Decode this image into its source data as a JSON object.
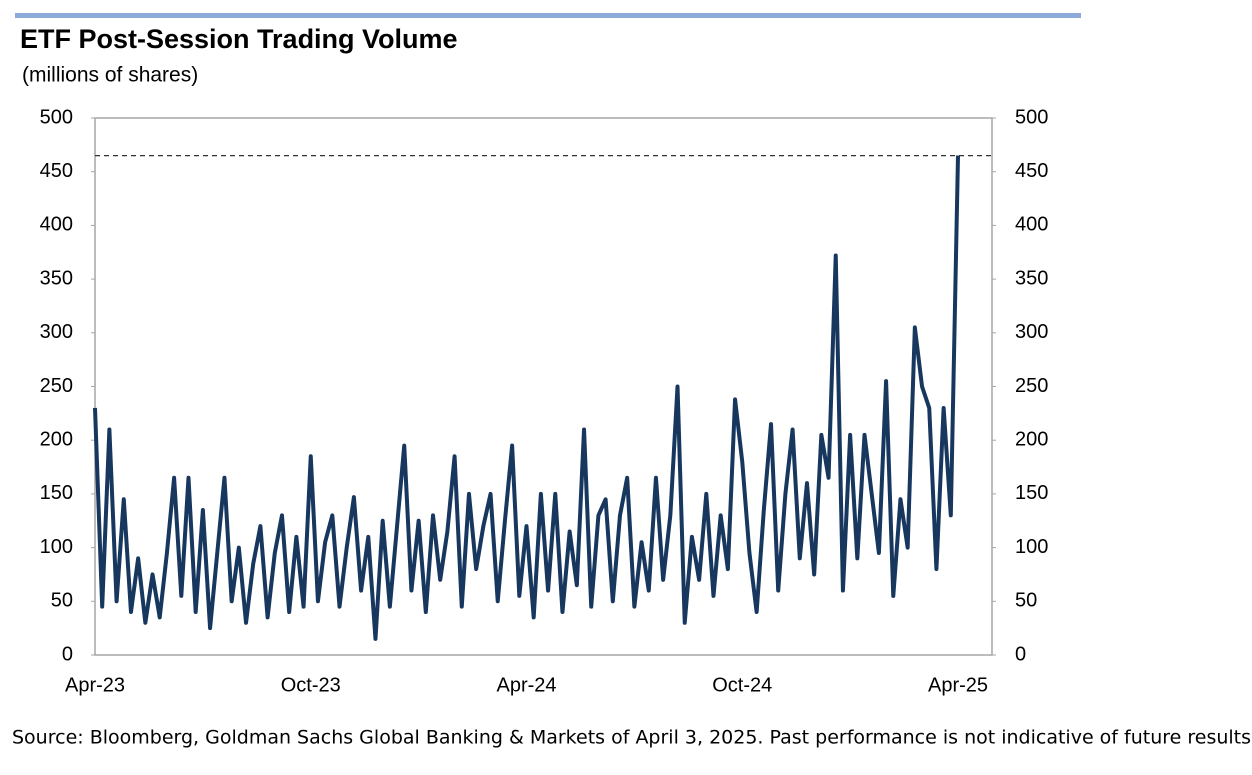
{
  "chart_data": {
    "type": "line",
    "title": "ETF Post-Session Trading Volume",
    "subtitle": "(millions of shares)",
    "source": "Source: Bloomberg, Goldman Sachs Global Banking & Markets of April 3, 2025. Past performance is not indicative of future results.",
    "categories": [
      "Apr-23",
      null,
      null,
      null,
      null,
      null,
      null,
      null,
      null,
      null,
      null,
      null,
      null,
      null,
      null,
      null,
      null,
      null,
      null,
      null,
      null,
      null,
      null,
      null,
      null,
      null,
      null,
      null,
      null,
      null,
      "Oct-23",
      null,
      null,
      null,
      null,
      null,
      null,
      null,
      null,
      null,
      null,
      null,
      null,
      null,
      null,
      null,
      null,
      null,
      null,
      null,
      null,
      null,
      null,
      null,
      null,
      null,
      null,
      null,
      null,
      null,
      "Apr-24",
      null,
      null,
      null,
      null,
      null,
      null,
      null,
      null,
      null,
      null,
      null,
      null,
      null,
      null,
      null,
      null,
      null,
      null,
      null,
      null,
      null,
      null,
      null,
      null,
      null,
      null,
      null,
      null,
      null,
      "Oct-24",
      null,
      null,
      null,
      null,
      null,
      null,
      null,
      null,
      null,
      null,
      null,
      null,
      null,
      null,
      null,
      null,
      null,
      null,
      null,
      null,
      null,
      null,
      null,
      null,
      null,
      null,
      null,
      null,
      null,
      "Apr-25"
    ],
    "series": [
      {
        "color": "#17375e",
        "values": [
          230,
          45,
          210,
          50,
          145,
          40,
          90,
          30,
          75,
          35,
          95,
          165,
          55,
          165,
          40,
          135,
          25,
          95,
          165,
          50,
          100,
          30,
          85,
          120,
          35,
          95,
          130,
          40,
          110,
          45,
          185,
          50,
          105,
          130,
          45,
          100,
          147,
          60,
          110,
          15,
          125,
          45,
          120,
          195,
          60,
          125,
          40,
          130,
          70,
          115,
          185,
          45,
          150,
          80,
          120,
          150,
          50,
          125,
          195,
          55,
          120,
          35,
          150,
          60,
          150,
          40,
          115,
          65,
          210,
          45,
          130,
          145,
          50,
          130,
          165,
          45,
          105,
          60,
          165,
          70,
          130,
          250,
          30,
          110,
          70,
          150,
          55,
          130,
          80,
          238,
          180,
          95,
          40,
          135,
          215,
          60,
          150,
          210,
          90,
          160,
          75,
          205,
          165,
          372,
          60,
          205,
          90,
          205,
          150,
          95,
          255,
          55,
          145,
          100,
          305,
          250,
          230,
          80,
          230,
          130,
          465
        ]
      }
    ],
    "reference_line": 465,
    "ylim": [
      0,
      500
    ],
    "yticks": [
      0,
      50,
      100,
      150,
      200,
      250,
      300,
      350,
      400,
      450,
      500
    ],
    "y2lim": [
      0,
      500
    ],
    "y2ticks": [
      0,
      50,
      100,
      150,
      200,
      250,
      300,
      350,
      400,
      450,
      500
    ]
  }
}
